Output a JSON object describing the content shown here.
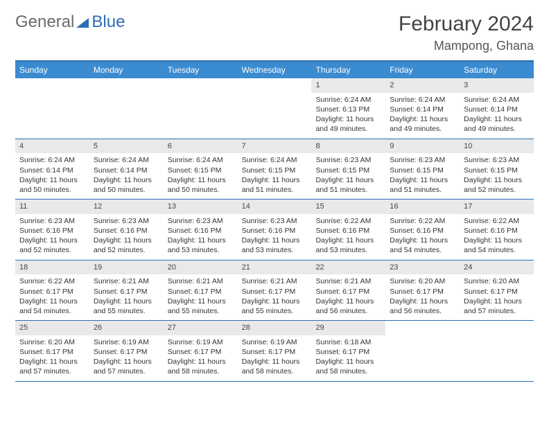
{
  "logo": {
    "part1": "General",
    "part2": "Blue"
  },
  "title": "February 2024",
  "location": "Mampong, Ghana",
  "daysOfWeek": [
    "Sunday",
    "Monday",
    "Tuesday",
    "Wednesday",
    "Thursday",
    "Friday",
    "Saturday"
  ],
  "colors": {
    "accent": "#3b8bd0",
    "border": "#2d6db3",
    "dayHeaderBg": "#e9e9e9"
  },
  "weeks": [
    [
      {
        "n": "",
        "sr": "",
        "ss": "",
        "dl": ""
      },
      {
        "n": "",
        "sr": "",
        "ss": "",
        "dl": ""
      },
      {
        "n": "",
        "sr": "",
        "ss": "",
        "dl": ""
      },
      {
        "n": "",
        "sr": "",
        "ss": "",
        "dl": ""
      },
      {
        "n": "1",
        "sr": "Sunrise: 6:24 AM",
        "ss": "Sunset: 6:13 PM",
        "dl": "Daylight: 11 hours and 49 minutes."
      },
      {
        "n": "2",
        "sr": "Sunrise: 6:24 AM",
        "ss": "Sunset: 6:14 PM",
        "dl": "Daylight: 11 hours and 49 minutes."
      },
      {
        "n": "3",
        "sr": "Sunrise: 6:24 AM",
        "ss": "Sunset: 6:14 PM",
        "dl": "Daylight: 11 hours and 49 minutes."
      }
    ],
    [
      {
        "n": "4",
        "sr": "Sunrise: 6:24 AM",
        "ss": "Sunset: 6:14 PM",
        "dl": "Daylight: 11 hours and 50 minutes."
      },
      {
        "n": "5",
        "sr": "Sunrise: 6:24 AM",
        "ss": "Sunset: 6:14 PM",
        "dl": "Daylight: 11 hours and 50 minutes."
      },
      {
        "n": "6",
        "sr": "Sunrise: 6:24 AM",
        "ss": "Sunset: 6:15 PM",
        "dl": "Daylight: 11 hours and 50 minutes."
      },
      {
        "n": "7",
        "sr": "Sunrise: 6:24 AM",
        "ss": "Sunset: 6:15 PM",
        "dl": "Daylight: 11 hours and 51 minutes."
      },
      {
        "n": "8",
        "sr": "Sunrise: 6:23 AM",
        "ss": "Sunset: 6:15 PM",
        "dl": "Daylight: 11 hours and 51 minutes."
      },
      {
        "n": "9",
        "sr": "Sunrise: 6:23 AM",
        "ss": "Sunset: 6:15 PM",
        "dl": "Daylight: 11 hours and 51 minutes."
      },
      {
        "n": "10",
        "sr": "Sunrise: 6:23 AM",
        "ss": "Sunset: 6:15 PM",
        "dl": "Daylight: 11 hours and 52 minutes."
      }
    ],
    [
      {
        "n": "11",
        "sr": "Sunrise: 6:23 AM",
        "ss": "Sunset: 6:16 PM",
        "dl": "Daylight: 11 hours and 52 minutes."
      },
      {
        "n": "12",
        "sr": "Sunrise: 6:23 AM",
        "ss": "Sunset: 6:16 PM",
        "dl": "Daylight: 11 hours and 52 minutes."
      },
      {
        "n": "13",
        "sr": "Sunrise: 6:23 AM",
        "ss": "Sunset: 6:16 PM",
        "dl": "Daylight: 11 hours and 53 minutes."
      },
      {
        "n": "14",
        "sr": "Sunrise: 6:23 AM",
        "ss": "Sunset: 6:16 PM",
        "dl": "Daylight: 11 hours and 53 minutes."
      },
      {
        "n": "15",
        "sr": "Sunrise: 6:22 AM",
        "ss": "Sunset: 6:16 PM",
        "dl": "Daylight: 11 hours and 53 minutes."
      },
      {
        "n": "16",
        "sr": "Sunrise: 6:22 AM",
        "ss": "Sunset: 6:16 PM",
        "dl": "Daylight: 11 hours and 54 minutes."
      },
      {
        "n": "17",
        "sr": "Sunrise: 6:22 AM",
        "ss": "Sunset: 6:16 PM",
        "dl": "Daylight: 11 hours and 54 minutes."
      }
    ],
    [
      {
        "n": "18",
        "sr": "Sunrise: 6:22 AM",
        "ss": "Sunset: 6:17 PM",
        "dl": "Daylight: 11 hours and 54 minutes."
      },
      {
        "n": "19",
        "sr": "Sunrise: 6:21 AM",
        "ss": "Sunset: 6:17 PM",
        "dl": "Daylight: 11 hours and 55 minutes."
      },
      {
        "n": "20",
        "sr": "Sunrise: 6:21 AM",
        "ss": "Sunset: 6:17 PM",
        "dl": "Daylight: 11 hours and 55 minutes."
      },
      {
        "n": "21",
        "sr": "Sunrise: 6:21 AM",
        "ss": "Sunset: 6:17 PM",
        "dl": "Daylight: 11 hours and 55 minutes."
      },
      {
        "n": "22",
        "sr": "Sunrise: 6:21 AM",
        "ss": "Sunset: 6:17 PM",
        "dl": "Daylight: 11 hours and 56 minutes."
      },
      {
        "n": "23",
        "sr": "Sunrise: 6:20 AM",
        "ss": "Sunset: 6:17 PM",
        "dl": "Daylight: 11 hours and 56 minutes."
      },
      {
        "n": "24",
        "sr": "Sunrise: 6:20 AM",
        "ss": "Sunset: 6:17 PM",
        "dl": "Daylight: 11 hours and 57 minutes."
      }
    ],
    [
      {
        "n": "25",
        "sr": "Sunrise: 6:20 AM",
        "ss": "Sunset: 6:17 PM",
        "dl": "Daylight: 11 hours and 57 minutes."
      },
      {
        "n": "26",
        "sr": "Sunrise: 6:19 AM",
        "ss": "Sunset: 6:17 PM",
        "dl": "Daylight: 11 hours and 57 minutes."
      },
      {
        "n": "27",
        "sr": "Sunrise: 6:19 AM",
        "ss": "Sunset: 6:17 PM",
        "dl": "Daylight: 11 hours and 58 minutes."
      },
      {
        "n": "28",
        "sr": "Sunrise: 6:19 AM",
        "ss": "Sunset: 6:17 PM",
        "dl": "Daylight: 11 hours and 58 minutes."
      },
      {
        "n": "29",
        "sr": "Sunrise: 6:18 AM",
        "ss": "Sunset: 6:17 PM",
        "dl": "Daylight: 11 hours and 58 minutes."
      },
      {
        "n": "",
        "sr": "",
        "ss": "",
        "dl": ""
      },
      {
        "n": "",
        "sr": "",
        "ss": "",
        "dl": ""
      }
    ]
  ]
}
